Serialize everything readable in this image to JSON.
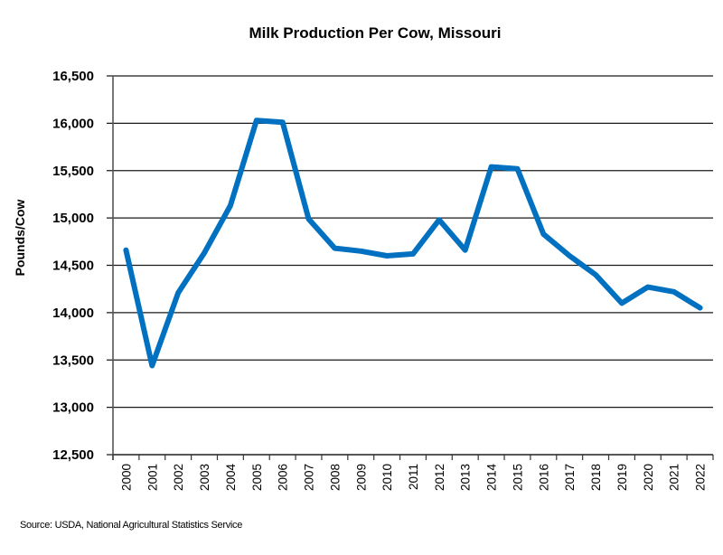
{
  "chart_data": {
    "type": "line",
    "title": "Milk Production Per Cow, Missouri",
    "xlabel": "",
    "ylabel": "Pounds/Cow",
    "ylim": [
      12500,
      16500
    ],
    "yticks": [
      12500,
      13000,
      13500,
      14000,
      14500,
      15000,
      15500,
      16000,
      16500
    ],
    "ytick_labels": [
      "12,500",
      "13,000",
      "13,500",
      "14,000",
      "14,500",
      "15,000",
      "15,500",
      "16,000",
      "16,500"
    ],
    "grid": true,
    "legend": "none",
    "categories": [
      "2000",
      "2001",
      "2002",
      "2003",
      "2004",
      "2005",
      "2006",
      "2007",
      "2008",
      "2009",
      "2010",
      "2011",
      "2012",
      "2013",
      "2014",
      "2015",
      "2016",
      "2017",
      "2018",
      "2019",
      "2020",
      "2021",
      "2022"
    ],
    "series": [
      {
        "name": "Milk Production Per Cow",
        "color": "#0070C0",
        "values": [
          14660,
          13440,
          14210,
          14630,
          15130,
          16030,
          16010,
          14990,
          14680,
          14650,
          14600,
          14620,
          14980,
          14660,
          15540,
          15520,
          14830,
          14600,
          14400,
          14100,
          14270,
          14220,
          14050
        ]
      }
    ]
  },
  "footer": {
    "source": "Source: USDA, National Agricultural Statistics Service"
  }
}
